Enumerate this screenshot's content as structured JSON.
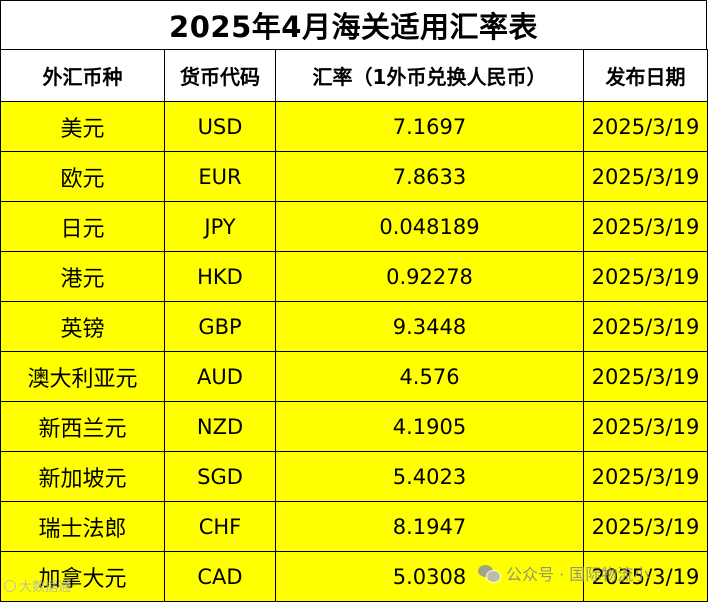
{
  "title": "2025年4月海关适用汇率表",
  "headers": [
    "外汇币种",
    "货币代码",
    "汇率（1外币兑换人民币）",
    "发布日期"
  ],
  "rows": [
    {
      "name": "美元",
      "code": "USD",
      "rate": "7.1697",
      "date": "2025/3/19"
    },
    {
      "name": "欧元",
      "code": "EUR",
      "rate": "7.8633",
      "date": "2025/3/19"
    },
    {
      "name": "日元",
      "code": "JPY",
      "rate": "0.048189",
      "date": "2025/3/19"
    },
    {
      "name": "港元",
      "code": "HKD",
      "rate": "0.92278",
      "date": "2025/3/19"
    },
    {
      "name": "英镑",
      "code": "GBP",
      "rate": "9.3448",
      "date": "2025/3/19"
    },
    {
      "name": "澳大利亚元",
      "code": "AUD",
      "rate": "4.576",
      "date": "2025/3/19"
    },
    {
      "name": "新西兰元",
      "code": "NZD",
      "rate": "4.1905",
      "date": "2025/3/19"
    },
    {
      "name": "新加坡元",
      "code": "SGD",
      "rate": "5.4023",
      "date": "2025/3/19"
    },
    {
      "name": "瑞士法郎",
      "code": "CHF",
      "rate": "8.1947",
      "date": "2025/3/19"
    },
    {
      "name": "加拿大元",
      "code": "CAD",
      "rate": "5.0308",
      "date": "2025/3/19"
    }
  ],
  "watermark": {
    "left_text": "大数据通",
    "right_text": "公众号 · 国际物流小",
    "icon": "wechat-icon"
  },
  "colors": {
    "row_fill": "#ffff00",
    "header_fill": "#ffffff",
    "border": "#000000"
  }
}
